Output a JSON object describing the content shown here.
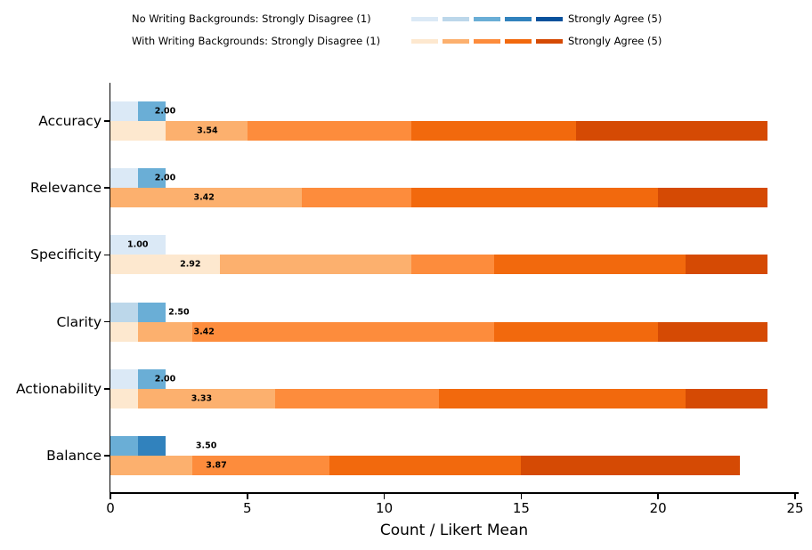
{
  "legend": {
    "rows": [
      {
        "series": "No Writing Backgrounds",
        "prefix": "No Writing Backgrounds: Strongly Disagree (1)",
        "suffix": "Strongly Agree (5)",
        "colors": [
          "#dbe9f6",
          "#bcd7ea",
          "#6aaed6",
          "#3182bd",
          "#08519c"
        ]
      },
      {
        "series": "With Writing Backgrounds",
        "prefix": "With Writing Backgrounds: Strongly Disagree (1)",
        "suffix": "Strongly Agree (5)",
        "colors": [
          "#fde8cf",
          "#fcb06e",
          "#fd8c3c",
          "#f2690d",
          "#d54a04"
        ]
      }
    ]
  },
  "chart_data": {
    "type": "bar",
    "orientation": "horizontal",
    "stacked": true,
    "xlabel": "Count / Likert Mean",
    "xlim": [
      0,
      25
    ],
    "x_ticks": [
      0,
      5,
      10,
      15,
      20,
      25
    ],
    "grid": false,
    "legend_position": "top",
    "categories": [
      "Accuracy",
      "Relevance",
      "Specificity",
      "Clarity",
      "Actionability",
      "Balance"
    ],
    "likert_scale": {
      "levels": [
        1,
        2,
        3,
        4,
        5
      ],
      "min_label": "Strongly Disagree (1)",
      "max_label": "Strongly Agree (5)"
    },
    "series": [
      {
        "name": "No Writing Backgrounds",
        "colors": [
          "#dbe9f6",
          "#bcd7ea",
          "#6aaed6",
          "#3182bd",
          "#08519c"
        ],
        "counts": [
          [
            1,
            0,
            1,
            0,
            0
          ],
          [
            1,
            0,
            1,
            0,
            0
          ],
          [
            2,
            0,
            0,
            0,
            0
          ],
          [
            0,
            1,
            1,
            0,
            0
          ],
          [
            1,
            0,
            1,
            0,
            0
          ],
          [
            0,
            0,
            1,
            1,
            0
          ]
        ],
        "means": [
          2.0,
          2.0,
          1.0,
          2.5,
          2.0,
          3.5
        ],
        "mean_labels": [
          "2.00",
          "2.00",
          "1.00",
          "2.50",
          "2.00",
          "3.50"
        ]
      },
      {
        "name": "With Writing Backgrounds",
        "colors": [
          "#fde8cf",
          "#fcb06e",
          "#fd8c3c",
          "#f2690d",
          "#d54a04"
        ],
        "counts": [
          [
            2,
            3,
            6,
            6,
            7
          ],
          [
            0,
            7,
            4,
            9,
            4
          ],
          [
            4,
            7,
            3,
            7,
            3
          ],
          [
            1,
            2,
            11,
            6,
            4
          ],
          [
            1,
            5,
            6,
            9,
            3
          ],
          [
            0,
            3,
            5,
            7,
            8
          ]
        ],
        "means": [
          3.54,
          3.42,
          2.92,
          3.42,
          3.33,
          3.87
        ],
        "mean_labels": [
          "3.54",
          "3.42",
          "2.92",
          "3.42",
          "3.33",
          "3.87"
        ]
      }
    ]
  }
}
